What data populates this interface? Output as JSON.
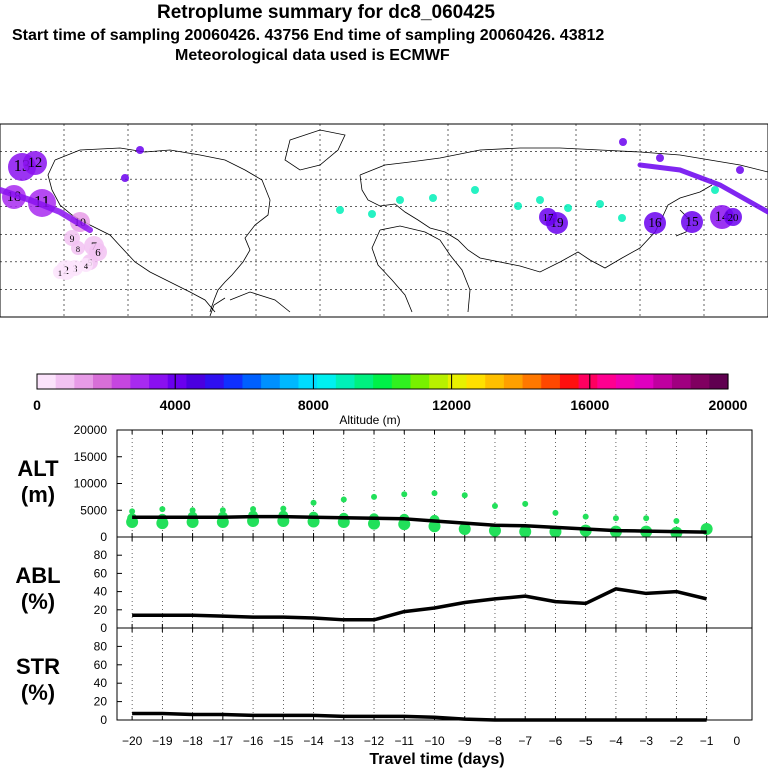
{
  "header": {
    "title": "Retroplume summary for dc8_060425",
    "sampling": "Start time of sampling 20060426. 43756     End time of sampling 20060426. 43812",
    "met": "Meteorological data used is ECMWF"
  },
  "colors": {
    "point": "#22e05a",
    "line": "#000000"
  },
  "chart_data": [
    {
      "type": "map",
      "title": "Retroplume positions (world map, Pacific-centered)",
      "annotations": [
        "1",
        "2",
        "3",
        "4",
        "5",
        "6",
        "7",
        "8",
        "9",
        "10",
        "11",
        "12",
        "13",
        "14",
        "15",
        "16",
        "17",
        "18",
        "19",
        "20"
      ],
      "point_labels": [
        {
          "label": "13",
          "alt_m": 3500
        },
        {
          "label": "12",
          "alt_m": 3500
        },
        {
          "label": "18",
          "alt_m": 3000
        },
        {
          "label": "11",
          "alt_m": 3000
        },
        {
          "label": "10",
          "alt_m": 1500
        },
        {
          "label": "9",
          "alt_m": 1000
        },
        {
          "label": "8",
          "alt_m": 800
        },
        {
          "label": "7",
          "alt_m": 800
        },
        {
          "label": "6",
          "alt_m": 700
        },
        {
          "label": "5",
          "alt_m": 600
        },
        {
          "label": "4",
          "alt_m": 500
        },
        {
          "label": "3",
          "alt_m": 500
        },
        {
          "label": "2",
          "alt_m": 500
        },
        {
          "label": "1",
          "alt_m": 500
        },
        {
          "label": "19",
          "alt_m": 4000
        },
        {
          "label": "17",
          "alt_m": 4000
        },
        {
          "label": "16",
          "alt_m": 3800
        },
        {
          "label": "15",
          "alt_m": 3800
        },
        {
          "label": "14",
          "alt_m": 3500
        },
        {
          "label": "20",
          "alt_m": 4200
        }
      ]
    },
    {
      "type": "colorbar",
      "xlabel": "Altitude (m)",
      "ticks": [
        0,
        4000,
        8000,
        12000,
        16000,
        20000
      ],
      "range": [
        0,
        20000
      ]
    },
    {
      "type": "line",
      "panel": "ALT",
      "ylabel": "ALT (m)",
      "ylabel_line1": "ALT",
      "ylabel_line2": "(m)",
      "ylim": [
        0,
        20000
      ],
      "yticks": [
        0,
        5000,
        10000,
        15000,
        20000
      ],
      "x": [
        -20,
        -19,
        -18,
        -17,
        -16,
        -15,
        -14,
        -13,
        -12,
        -11,
        -10,
        -9,
        -8,
        -7,
        -6,
        -5,
        -4,
        -3,
        -2,
        -1
      ],
      "mean": [
        3700,
        3700,
        3700,
        3700,
        3800,
        3800,
        3700,
        3600,
        3500,
        3400,
        3000,
        2600,
        2200,
        2100,
        1800,
        1500,
        1200,
        1100,
        1000,
        900
      ],
      "scatter": [
        {
          "x": -20,
          "ys": [
            4800,
            3500,
            2800
          ]
        },
        {
          "x": -19,
          "ys": [
            5200,
            3400,
            2600
          ]
        },
        {
          "x": -18,
          "ys": [
            5000,
            3800,
            2800
          ]
        },
        {
          "x": -17,
          "ys": [
            5000,
            3800,
            2800
          ]
        },
        {
          "x": -16,
          "ys": [
            5200,
            4000,
            3000
          ]
        },
        {
          "x": -15,
          "ys": [
            5300,
            4000,
            3000
          ]
        },
        {
          "x": -14,
          "ys": [
            6400,
            3800,
            2900
          ]
        },
        {
          "x": -13,
          "ys": [
            7000,
            3600,
            2800
          ]
        },
        {
          "x": -12,
          "ys": [
            7500,
            3500,
            2500
          ]
        },
        {
          "x": -11,
          "ys": [
            8000,
            3400,
            2400
          ]
        },
        {
          "x": -10,
          "ys": [
            8200,
            3200,
            2000
          ]
        },
        {
          "x": -9,
          "ys": [
            7800,
            1500
          ]
        },
        {
          "x": -8,
          "ys": [
            5800,
            1200
          ]
        },
        {
          "x": -7,
          "ys": [
            6200,
            1000
          ]
        },
        {
          "x": -6,
          "ys": [
            4500,
            1000
          ]
        },
        {
          "x": -5,
          "ys": [
            3800,
            1200
          ]
        },
        {
          "x": -4,
          "ys": [
            3500,
            1000
          ]
        },
        {
          "x": -3,
          "ys": [
            3500,
            1000
          ]
        },
        {
          "x": -2,
          "ys": [
            3000,
            800
          ]
        },
        {
          "x": -1,
          "ys": [
            1500
          ]
        }
      ]
    },
    {
      "type": "line",
      "panel": "ABL",
      "ylabel": "ABL (%)",
      "ylabel_line1": "ABL",
      "ylabel_line2": "(%)",
      "ylim": [
        0,
        100
      ],
      "yticks": [
        0,
        20,
        40,
        60,
        80
      ],
      "x": [
        -20,
        -19,
        -18,
        -17,
        -16,
        -15,
        -14,
        -13,
        -12,
        -11,
        -10,
        -9,
        -8,
        -7,
        -6,
        -5,
        -4,
        -3,
        -2,
        -1
      ],
      "values": [
        14,
        14,
        14,
        13,
        12,
        12,
        11,
        9,
        9,
        18,
        22,
        28,
        32,
        35,
        29,
        27,
        43,
        38,
        40,
        32
      ]
    },
    {
      "type": "line",
      "panel": "STR",
      "ylabel": "STR (%)",
      "ylabel_line1": "STR",
      "ylabel_line2": "(%)",
      "ylim": [
        0,
        100
      ],
      "yticks": [
        0,
        20,
        40,
        60,
        80
      ],
      "x": [
        -20,
        -19,
        -18,
        -17,
        -16,
        -15,
        -14,
        -13,
        -12,
        -11,
        -10,
        -9,
        -8,
        -7,
        -6,
        -5,
        -4,
        -3,
        -2,
        -1
      ],
      "values": [
        7,
        7,
        6,
        6,
        5,
        5,
        5,
        4,
        4,
        4,
        3,
        1,
        0,
        0,
        0,
        0,
        0,
        0,
        0,
        0
      ]
    },
    {
      "type": "axis",
      "xlabel": "Travel time (days)",
      "xticks": [
        -20,
        -19,
        -18,
        -17,
        -16,
        -15,
        -14,
        -13,
        -12,
        -11,
        -10,
        -9,
        -8,
        -7,
        -6,
        -5,
        -4,
        -3,
        -2,
        -1,
        0
      ],
      "xlim": [
        -20.5,
        0.5
      ]
    }
  ]
}
